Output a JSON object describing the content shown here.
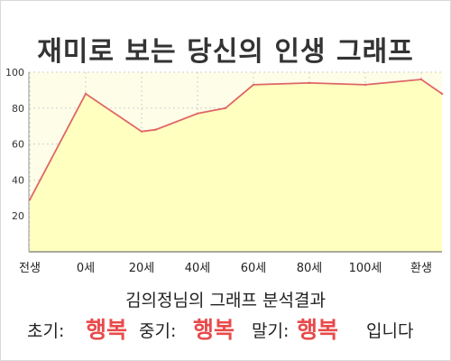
{
  "colors": {
    "line": "#e06666",
    "fill": "#ffffc0",
    "plot_bg": "#fefee8",
    "grid": "#cfcfcf",
    "happy": "#e84b4b"
  },
  "chart_data": {
    "type": "area",
    "title": "재미로 보는 당신의 인생 그래프",
    "categories": [
      "전생",
      "0세",
      "20세",
      "40세",
      "60세",
      "80세",
      "100세",
      "환생"
    ],
    "x": [
      -1,
      0,
      1,
      1.25,
      2,
      2.5,
      3,
      4,
      5,
      6,
      7
    ],
    "values": [
      29,
      88,
      67,
      68,
      77,
      80,
      93,
      94,
      93,
      96,
      88
    ],
    "ylim": [
      0,
      100
    ],
    "yticks": [
      20,
      40,
      60,
      80,
      100
    ],
    "grid": true,
    "legend": "none"
  },
  "summary": {
    "subtitle": "김의정님의 그래프 분석결과",
    "early_label": "초기:",
    "early_value": "행복",
    "middle_label": "중기:",
    "middle_value": "행복",
    "late_label": "말기:",
    "late_value": "행복",
    "ending": "입니다"
  }
}
